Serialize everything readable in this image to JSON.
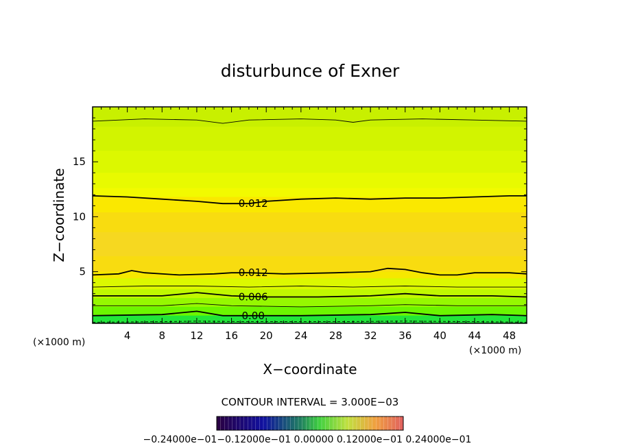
{
  "chart_data": {
    "type": "contour",
    "title": "disturbunce of Exner",
    "xlabel": "X−coordinate",
    "ylabel": "Z−coordinate",
    "x_unit": "(×1000 m)",
    "y_unit": "(×1000 m)",
    "x_ticks": [
      4,
      8,
      12,
      16,
      20,
      24,
      28,
      32,
      36,
      40,
      44,
      48
    ],
    "y_ticks": [
      5,
      10,
      15
    ],
    "xlim": [
      0,
      50
    ],
    "ylim": [
      0.3,
      20
    ],
    "contour_interval_text": "CONTOUR INTERVAL = 3.000E−03",
    "colorbar_labels_text": "−0.24000e−01−0.12000e−01 0.00000 0.12000e−01 0.24000e−01",
    "colorbar_range": [
      -0.024,
      0.024
    ],
    "contour_labels": [
      {
        "text": "0.012",
        "x": 18.5,
        "z": 11.2
      },
      {
        "text": "0.012",
        "x": 18.5,
        "z": 4.9
      },
      {
        "text": "0.006",
        "x": 18.5,
        "z": 2.7
      },
      {
        "text": "0.00",
        "x": 18.5,
        "z": 1.0
      }
    ],
    "contour_lines": [
      {
        "level": 0.012,
        "bold": true,
        "points": [
          [
            0,
            11.9
          ],
          [
            4,
            11.8
          ],
          [
            8,
            11.6
          ],
          [
            12,
            11.4
          ],
          [
            15,
            11.2
          ],
          [
            18,
            11.2
          ],
          [
            20,
            11.4
          ],
          [
            24,
            11.6
          ],
          [
            28,
            11.7
          ],
          [
            32,
            11.6
          ],
          [
            36,
            11.7
          ],
          [
            40,
            11.7
          ],
          [
            44,
            11.8
          ],
          [
            48,
            11.9
          ],
          [
            50,
            11.9
          ]
        ]
      },
      {
        "level": 0.012,
        "bold": true,
        "points": [
          [
            0,
            4.7
          ],
          [
            3,
            4.8
          ],
          [
            4.5,
            5.1
          ],
          [
            6,
            4.9
          ],
          [
            10,
            4.7
          ],
          [
            14,
            4.8
          ],
          [
            16,
            4.9
          ],
          [
            18,
            4.9
          ],
          [
            22,
            4.8
          ],
          [
            28,
            4.9
          ],
          [
            32,
            5.0
          ],
          [
            34,
            5.3
          ],
          [
            36,
            5.2
          ],
          [
            38,
            4.9
          ],
          [
            40,
            4.7
          ],
          [
            42,
            4.7
          ],
          [
            44,
            4.9
          ],
          [
            48,
            4.9
          ],
          [
            50,
            4.8
          ]
        ]
      },
      {
        "level": 0.009,
        "bold": false,
        "points": [
          [
            0,
            3.6
          ],
          [
            6,
            3.7
          ],
          [
            12,
            3.7
          ],
          [
            18,
            3.6
          ],
          [
            24,
            3.7
          ],
          [
            30,
            3.6
          ],
          [
            36,
            3.7
          ],
          [
            42,
            3.6
          ],
          [
            50,
            3.6
          ]
        ]
      },
      {
        "level": 0.006,
        "bold": true,
        "points": [
          [
            0,
            2.8
          ],
          [
            8,
            2.8
          ],
          [
            12,
            3.1
          ],
          [
            16,
            2.8
          ],
          [
            20,
            2.7
          ],
          [
            26,
            2.7
          ],
          [
            32,
            2.8
          ],
          [
            36,
            3.0
          ],
          [
            40,
            2.8
          ],
          [
            46,
            2.8
          ],
          [
            50,
            2.7
          ]
        ]
      },
      {
        "level": 0.003,
        "bold": false,
        "points": [
          [
            0,
            1.9
          ],
          [
            8,
            1.9
          ],
          [
            12,
            2.1
          ],
          [
            16,
            1.9
          ],
          [
            24,
            1.8
          ],
          [
            32,
            1.9
          ],
          [
            36,
            2.0
          ],
          [
            42,
            1.9
          ],
          [
            50,
            1.9
          ]
        ]
      },
      {
        "level": 0.0,
        "bold": true,
        "points": [
          [
            0,
            1.0
          ],
          [
            8,
            1.1
          ],
          [
            12,
            1.4
          ],
          [
            15,
            1.0
          ],
          [
            24,
            1.0
          ],
          [
            32,
            1.1
          ],
          [
            36,
            1.3
          ],
          [
            40,
            1.0
          ],
          [
            46,
            1.1
          ],
          [
            50,
            1.0
          ]
        ]
      },
      {
        "level": -0.003,
        "bold": false,
        "dashed": true,
        "points": [
          [
            0,
            0.4
          ],
          [
            8,
            0.45
          ],
          [
            12,
            0.5
          ],
          [
            18,
            0.45
          ],
          [
            28,
            0.45
          ],
          [
            36,
            0.5
          ],
          [
            44,
            0.45
          ],
          [
            50,
            0.4
          ]
        ]
      },
      {
        "level": 0.015,
        "bold": false,
        "points": [
          [
            0,
            18.7
          ],
          [
            6,
            18.9
          ],
          [
            12,
            18.8
          ],
          [
            15,
            18.5
          ],
          [
            18,
            18.8
          ],
          [
            24,
            18.9
          ],
          [
            28,
            18.8
          ],
          [
            30,
            18.6
          ],
          [
            32,
            18.8
          ],
          [
            38,
            18.9
          ],
          [
            44,
            18.8
          ],
          [
            50,
            18.7
          ]
        ]
      }
    ],
    "fill_bands": [
      {
        "z": 20.0,
        "color": "#c8f000"
      },
      {
        "z": 18.2,
        "color": "#d2f400"
      },
      {
        "z": 16.0,
        "color": "#dcf800"
      },
      {
        "z": 14.0,
        "color": "#e8fa00"
      },
      {
        "z": 12.6,
        "color": "#f2fa00"
      },
      {
        "z": 11.8,
        "color": "#fae800"
      },
      {
        "z": 10.4,
        "color": "#f8dc10"
      },
      {
        "z": 8.6,
        "color": "#f6d820"
      },
      {
        "z": 6.4,
        "color": "#f8dc10"
      },
      {
        "z": 5.0,
        "color": "#f6e800"
      },
      {
        "z": 4.4,
        "color": "#dcf800"
      },
      {
        "z": 3.4,
        "color": "#c0f800"
      },
      {
        "z": 2.6,
        "color": "#96f800"
      },
      {
        "z": 1.8,
        "color": "#6cf600"
      },
      {
        "z": 1.0,
        "color": "#3cee20"
      }
    ],
    "grid": false
  }
}
